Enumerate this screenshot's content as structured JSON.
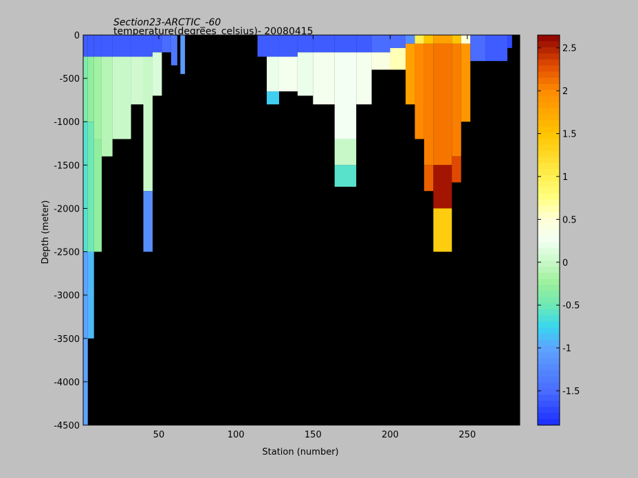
{
  "chart_data": {
    "type": "heatmap",
    "title": "Section23-ARCTIC_-60",
    "subtitle": "temperature(degrees_celsius)- 20080415",
    "xlabel": "Station (number)",
    "ylabel": "Depth (meter)",
    "xlim": [
      1,
      284
    ],
    "ylim": [
      -4500,
      0
    ],
    "x_ticks": [
      50,
      100,
      150,
      200,
      250
    ],
    "y_ticks": [
      0,
      -500,
      -1000,
      -1500,
      -2000,
      -2500,
      -3000,
      -3500,
      -4000,
      -4500
    ],
    "colorbar": {
      "range": [
        -1.9,
        2.65
      ],
      "ticks": [
        2.5,
        2,
        1.5,
        1,
        0.5,
        0,
        -0.5,
        -1,
        -1.5
      ],
      "colormap": "jet-like",
      "stops": [
        {
          "v": -1.9,
          "color": "#1a2cff"
        },
        {
          "v": -1.5,
          "color": "#4a6cff"
        },
        {
          "v": -1.0,
          "color": "#5ea4ff"
        },
        {
          "v": -0.75,
          "color": "#38d8ee"
        },
        {
          "v": -0.5,
          "color": "#6fe8b4"
        },
        {
          "v": -0.25,
          "color": "#9af09a"
        },
        {
          "v": 0.0,
          "color": "#c8f8c8"
        },
        {
          "v": 0.25,
          "color": "#f2fff2"
        },
        {
          "v": 0.5,
          "color": "#ffffd8"
        },
        {
          "v": 0.75,
          "color": "#ffff80"
        },
        {
          "v": 1.0,
          "color": "#ffef50"
        },
        {
          "v": 1.5,
          "color": "#ffc400"
        },
        {
          "v": 2.0,
          "color": "#ff8a00"
        },
        {
          "v": 2.3,
          "color": "#e04a00"
        },
        {
          "v": 2.65,
          "color": "#8a0000"
        }
      ]
    },
    "background_color": "#000000",
    "columns": [
      {
        "x0": 1,
        "x1": 4,
        "bottom": -4500,
        "surface_temp": -1.7,
        "layers": [
          [
            0,
            -250,
            -1.6
          ],
          [
            -250,
            -1000,
            -0.4
          ],
          [
            -1000,
            -2500,
            -0.6
          ],
          [
            -2500,
            -4500,
            -1.0
          ]
        ]
      },
      {
        "x0": 4,
        "x1": 8,
        "bottom": -3500,
        "surface_temp": -1.7,
        "layers": [
          [
            0,
            -250,
            -1.6
          ],
          [
            -250,
            -1000,
            -0.3
          ],
          [
            -1000,
            -2500,
            -0.5
          ],
          [
            -2500,
            -3500,
            -0.9
          ]
        ]
      },
      {
        "x0": 8,
        "x1": 13,
        "bottom": -2500,
        "surface_temp": -1.7,
        "layers": [
          [
            0,
            -250,
            -1.6
          ],
          [
            -250,
            -1200,
            -0.2
          ],
          [
            -1200,
            -2500,
            -0.3
          ]
        ]
      },
      {
        "x0": 13,
        "x1": 20,
        "bottom": -1400,
        "surface_temp": -1.7,
        "layers": [
          [
            0,
            -250,
            -1.6
          ],
          [
            -250,
            -1400,
            -0.1
          ]
        ]
      },
      {
        "x0": 20,
        "x1": 32,
        "bottom": -1200,
        "surface_temp": -1.7,
        "layers": [
          [
            0,
            -250,
            -1.6
          ],
          [
            -250,
            -1200,
            0.0
          ]
        ]
      },
      {
        "x0": 32,
        "x1": 40,
        "bottom": -800,
        "surface_temp": -1.7,
        "layers": [
          [
            0,
            -250,
            -1.6
          ],
          [
            -250,
            -800,
            0.05
          ]
        ]
      },
      {
        "x0": 40,
        "x1": 46,
        "bottom": -2500,
        "surface_temp": -1.7,
        "layers": [
          [
            0,
            -250,
            -1.6
          ],
          [
            -250,
            -1800,
            0.0
          ],
          [
            -1800,
            -2500,
            -1.2
          ]
        ]
      },
      {
        "x0": 46,
        "x1": 52,
        "bottom": -700,
        "surface_temp": -1.7,
        "layers": [
          [
            0,
            -200,
            -1.6
          ],
          [
            -200,
            -700,
            0.1
          ]
        ]
      },
      {
        "x0": 52,
        "x1": 58,
        "bottom": -200,
        "surface_temp": -1.7,
        "layers": [
          [
            0,
            -200,
            -1.5
          ]
        ]
      },
      {
        "x0": 58,
        "x1": 62,
        "bottom": -350,
        "surface_temp": -1.7,
        "layers": [
          [
            0,
            -350,
            -1.4
          ]
        ]
      },
      {
        "x0": 64,
        "x1": 67,
        "bottom": -450,
        "surface_temp": -1.6,
        "layers": [
          [
            0,
            -450,
            -1.1
          ]
        ]
      },
      {
        "x0": 114,
        "x1": 120,
        "bottom": -250,
        "surface_temp": -1.8,
        "layers": [
          [
            0,
            -250,
            -1.6
          ]
        ]
      },
      {
        "x0": 120,
        "x1": 128,
        "bottom": -800,
        "surface_temp": -1.7,
        "layers": [
          [
            0,
            -250,
            -1.6
          ],
          [
            -250,
            -650,
            0.2
          ],
          [
            -650,
            -800,
            -0.8
          ]
        ]
      },
      {
        "x0": 128,
        "x1": 140,
        "bottom": -650,
        "surface_temp": -1.7,
        "layers": [
          [
            0,
            -250,
            -1.6
          ],
          [
            -250,
            -650,
            0.3
          ]
        ]
      },
      {
        "x0": 140,
        "x1": 150,
        "bottom": -700,
        "surface_temp": -1.7,
        "layers": [
          [
            0,
            -200,
            -1.6
          ],
          [
            -200,
            -700,
            0.2
          ]
        ]
      },
      {
        "x0": 150,
        "x1": 164,
        "bottom": -800,
        "surface_temp": -1.7,
        "layers": [
          [
            0,
            -200,
            -1.6
          ],
          [
            -200,
            -800,
            0.3
          ]
        ]
      },
      {
        "x0": 164,
        "x1": 178,
        "bottom": -1750,
        "surface_temp": -1.7,
        "layers": [
          [
            0,
            -200,
            -1.6
          ],
          [
            -200,
            -1200,
            0.25
          ],
          [
            -1200,
            -1500,
            0.0
          ],
          [
            -1500,
            -1750,
            -0.6
          ]
        ]
      },
      {
        "x0": 178,
        "x1": 188,
        "bottom": -800,
        "surface_temp": -1.7,
        "layers": [
          [
            0,
            -200,
            -1.6
          ],
          [
            -200,
            -800,
            0.3
          ]
        ]
      },
      {
        "x0": 188,
        "x1": 200,
        "bottom": -400,
        "surface_temp": -1.7,
        "layers": [
          [
            0,
            -200,
            -1.5
          ],
          [
            -200,
            -400,
            0.4
          ]
        ]
      },
      {
        "x0": 200,
        "x1": 210,
        "bottom": -400,
        "surface_temp": -1.6,
        "layers": [
          [
            0,
            -150,
            -1.5
          ],
          [
            -150,
            -400,
            0.6
          ]
        ]
      },
      {
        "x0": 210,
        "x1": 216,
        "bottom": -800,
        "surface_temp": -1.0,
        "layers": [
          [
            0,
            -100,
            -1.2
          ],
          [
            -100,
            -800,
            1.8
          ]
        ]
      },
      {
        "x0": 216,
        "x1": 222,
        "bottom": -1200,
        "surface_temp": 1.0,
        "layers": [
          [
            0,
            -100,
            1.0
          ],
          [
            -100,
            -1200,
            2.0
          ]
        ]
      },
      {
        "x0": 222,
        "x1": 228,
        "bottom": -1800,
        "surface_temp": 1.5,
        "layers": [
          [
            0,
            -100,
            1.5
          ],
          [
            -100,
            -1500,
            2.05
          ],
          [
            -1500,
            -1800,
            2.2
          ]
        ]
      },
      {
        "x0": 228,
        "x1": 240,
        "bottom": -2500,
        "surface_temp": 1.8,
        "layers": [
          [
            0,
            -100,
            1.8
          ],
          [
            -100,
            -1500,
            2.1
          ],
          [
            -1500,
            -2000,
            2.55
          ],
          [
            -2000,
            -2500,
            1.4
          ]
        ]
      },
      {
        "x0": 240,
        "x1": 246,
        "bottom": -1700,
        "surface_temp": 1.5,
        "layers": [
          [
            0,
            -100,
            1.5
          ],
          [
            -100,
            -1400,
            2.05
          ],
          [
            -1400,
            -1700,
            2.3
          ]
        ]
      },
      {
        "x0": 246,
        "x1": 252,
        "bottom": -1000,
        "surface_temp": 1.0,
        "layers": [
          [
            0,
            -100,
            0.5
          ],
          [
            -100,
            -1000,
            1.9
          ]
        ]
      },
      {
        "x0": 252,
        "x1": 262,
        "bottom": -300,
        "surface_temp": -1.6,
        "layers": [
          [
            0,
            -300,
            -1.5
          ]
        ]
      },
      {
        "x0": 262,
        "x1": 276,
        "bottom": -300,
        "surface_temp": -1.7,
        "layers": [
          [
            0,
            -300,
            -1.6
          ]
        ]
      },
      {
        "x0": 276,
        "x1": 279,
        "bottom": -150,
        "surface_temp": -1.7,
        "layers": [
          [
            0,
            -150,
            -1.7
          ]
        ]
      }
    ]
  }
}
